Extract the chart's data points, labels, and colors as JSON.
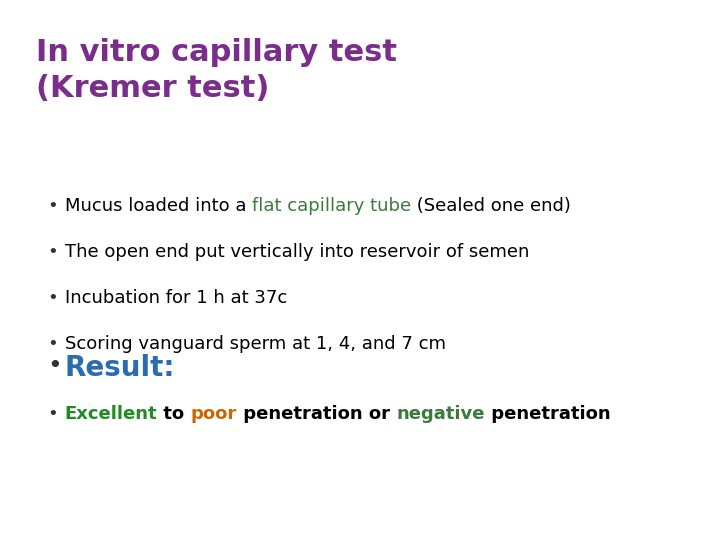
{
  "background_color": "#ffffff",
  "title_line1": "In vitro capillary test",
  "title_line2": "(Kremer test)",
  "title_color": "#7B2D8B",
  "title_fontsize": 22,
  "title_fontweight": "bold",
  "bullet_color": "#333333",
  "bullet_fontsize": 13,
  "bullet_items": [
    {
      "parts": [
        {
          "text": "Mucus loaded into a ",
          "color": "#000000",
          "bold": false
        },
        {
          "text": "flat capillary tube",
          "color": "#3B7A3B",
          "bold": false
        },
        {
          "text": " (Sealed one end)",
          "color": "#000000",
          "bold": false
        }
      ]
    },
    {
      "parts": [
        {
          "text": "The open end put vertically into reservoir of semen",
          "color": "#000000",
          "bold": false
        }
      ]
    },
    {
      "parts": [
        {
          "text": "Incubation for 1 h at 37c",
          "color": "#000000",
          "bold": false
        }
      ]
    },
    {
      "parts": [
        {
          "text": "Scoring vanguard sperm at 1, 4, and 7 cm",
          "color": "#000000",
          "bold": false
        }
      ]
    }
  ],
  "result_label": "Result:",
  "result_color": "#2B6CB0",
  "result_fontsize": 20,
  "last_bullet_parts": [
    {
      "text": "Excellent",
      "color": "#228B22",
      "bold": true
    },
    {
      "text": " to ",
      "color": "#000000",
      "bold": true
    },
    {
      "text": "poor",
      "color": "#CC6600",
      "bold": true
    },
    {
      "text": " penetration or ",
      "color": "#000000",
      "bold": true
    },
    {
      "text": "negative",
      "color": "#3B7A3B",
      "bold": true
    },
    {
      "text": " penetration",
      "color": "#000000",
      "bold": true
    }
  ],
  "last_bullet_fontsize": 13
}
